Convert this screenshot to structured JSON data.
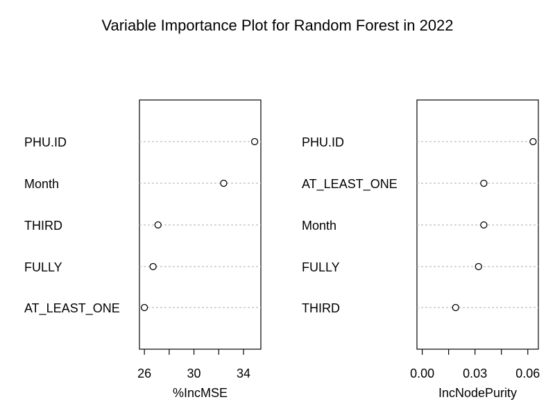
{
  "figure": {
    "title": "Variable Importance Plot for Random Forest in 2022"
  },
  "chart_data": [
    {
      "type": "scatter",
      "xlabel": "%IncMSE",
      "categories": [
        "PHU.ID",
        "Month",
        "THIRD",
        "FULLY",
        "AT_LEAST_ONE"
      ],
      "values": [
        34.9,
        32.4,
        27.1,
        26.7,
        26.0
      ],
      "xlim": [
        25.6,
        35.4
      ],
      "xticks": [
        26,
        28,
        30,
        32,
        34
      ],
      "xticklabels": [
        "26",
        "",
        "30",
        "",
        "34"
      ],
      "grid": "dotted-horizontal"
    },
    {
      "type": "scatter",
      "xlabel": "IncNodePurity",
      "categories": [
        "PHU.ID",
        "AT_LEAST_ONE",
        "Month",
        "FULLY",
        "THIRD"
      ],
      "values": [
        0.063,
        0.035,
        0.035,
        0.032,
        0.019
      ],
      "xlim": [
        -0.003,
        0.066
      ],
      "xticks": [
        0.0,
        0.015,
        0.03,
        0.045,
        0.06
      ],
      "xticklabels": [
        "0.00",
        "",
        "0.03",
        "",
        "0.06"
      ],
      "grid": "dotted-horizontal"
    }
  ]
}
